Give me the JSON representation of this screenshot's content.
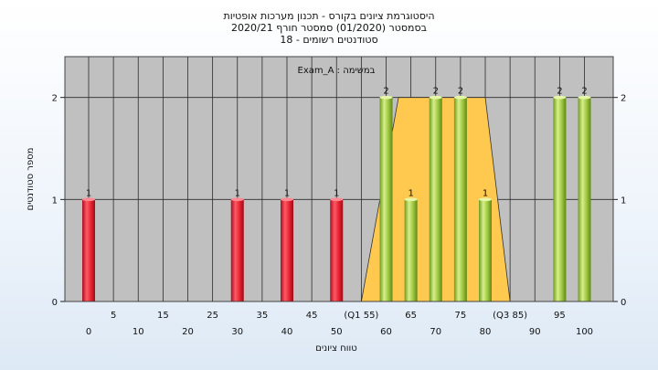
{
  "title_lines": [
    "היסטוגרמת ציונים בקורס - תכנון מערכות אופטיות",
    "בסמסטר  (01/2020)  סמסטר חורף  2020/21",
    "סטודנטים רשומים - 18"
  ],
  "chart_data": {
    "type": "bar",
    "title": "היסטוגרמת ציונים בקורס - תכנון מערכות אופטיות",
    "ylabel": "מספר סטודנטים",
    "xlabel": "טווח ציונים",
    "legend_label": "Exam_A : במשימה",
    "ylim": [
      0,
      2.4
    ],
    "yticks": [
      0,
      1,
      2
    ],
    "grid": true,
    "bars": [
      {
        "x": 0,
        "value": 1,
        "color": "red"
      },
      {
        "x": 30,
        "value": 1,
        "color": "red"
      },
      {
        "x": 40,
        "value": 1,
        "color": "red"
      },
      {
        "x": 50,
        "value": 1,
        "color": "red"
      },
      {
        "x": 60,
        "value": 2,
        "color": "green"
      },
      {
        "x": 65,
        "value": 1,
        "color": "green"
      },
      {
        "x": 70,
        "value": 2,
        "color": "green"
      },
      {
        "x": 75,
        "value": 2,
        "color": "green"
      },
      {
        "x": 80,
        "value": 1,
        "color": "green"
      },
      {
        "x": 95,
        "value": 2,
        "color": "green"
      },
      {
        "x": 100,
        "value": 2,
        "color": "green"
      }
    ],
    "x_tick_labels_lower": [
      "0",
      "10",
      "20",
      "30",
      "40",
      "50",
      "60",
      "70",
      "80",
      "90",
      "100"
    ],
    "x_tick_labels_upper": [
      "5",
      "15",
      "25",
      "35",
      "45",
      "(Q1 55)",
      "65",
      "75",
      "(Q3 85)",
      "95"
    ],
    "quartile_band": {
      "q1": 55,
      "q3": 85,
      "top_start": 62.5,
      "top_end": 80,
      "level": 2
    },
    "colors": {
      "plot_bg": "#c0c0c0",
      "band": "#ffc94f",
      "bar_red": "#e8283c",
      "bar_green": "#9bc53d"
    }
  }
}
